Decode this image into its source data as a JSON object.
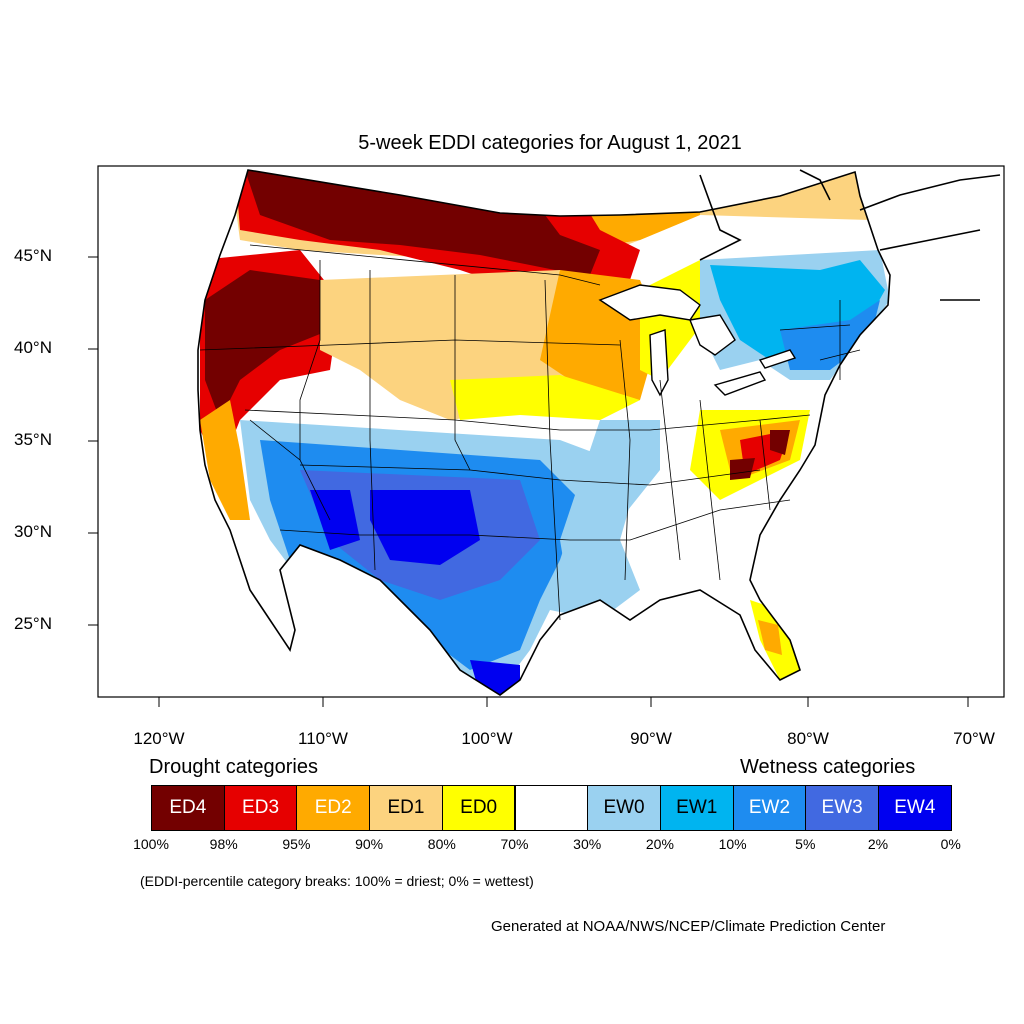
{
  "title": "5-week EDDI categories for August 1, 2021",
  "lat_ticks": [
    "45°N",
    "40°N",
    "35°N",
    "30°N",
    "25°N"
  ],
  "lon_ticks": [
    "120°W",
    "110°W",
    "100°W",
    "90°W",
    "80°W",
    "70°W"
  ],
  "legend": {
    "drought_heading": "Drought categories",
    "wetness_heading": "Wetness categories",
    "categories": [
      {
        "label": "ED4",
        "color": "#730000",
        "text_color": "#ffffff"
      },
      {
        "label": "ED3",
        "color": "#e60000",
        "text_color": "#ffffff"
      },
      {
        "label": "ED2",
        "color": "#ffaa00",
        "text_color": "#ffffff"
      },
      {
        "label": "ED1",
        "color": "#fcd37f",
        "text_color": "#000000"
      },
      {
        "label": "ED0",
        "color": "#ffff00",
        "text_color": "#000000"
      },
      {
        "label": "",
        "color": "#ffffff",
        "text_color": "#000000"
      },
      {
        "label": "EW0",
        "color": "#9ad1f0",
        "text_color": "#000000"
      },
      {
        "label": "EW1",
        "color": "#00b4f0",
        "text_color": "#000000"
      },
      {
        "label": "EW2",
        "color": "#1e8cf0",
        "text_color": "#ffffff"
      },
      {
        "label": "EW3",
        "color": "#4169e1",
        "text_color": "#ffffff"
      },
      {
        "label": "EW4",
        "color": "#0000f0",
        "text_color": "#ffffff"
      }
    ],
    "breaks": [
      "100%",
      "98%",
      "95%",
      "90%",
      "80%",
      "70%",
      "30%",
      "20%",
      "10%",
      "5%",
      "2%",
      "0%"
    ]
  },
  "note": "(EDDI-percentile category breaks: 100% = driest; 0% = wettest)",
  "credit": "Generated at NOAA/NWS/NCEP/Climate Prediction Center"
}
